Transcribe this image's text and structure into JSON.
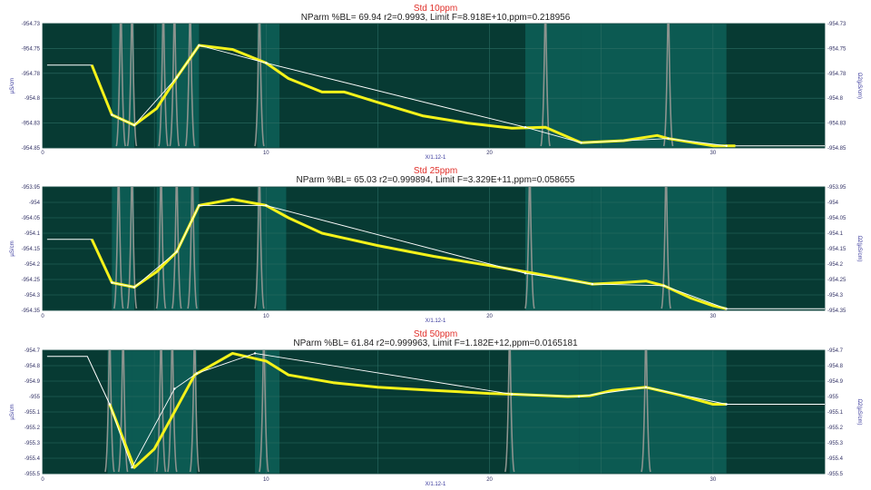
{
  "chart_data": [
    {
      "type": "line",
      "title": "Std 10ppm",
      "subtitle": "NParm %BL= 69.94 r2=0.9993, Limit F=8.918E+10,ppm=0.218956",
      "xlabel": "X/1.12-1",
      "ylabel": "µS/cm",
      "ylabel_right": "Ω2(µS/cm)",
      "xlim": [
        0,
        35
      ],
      "ylim": [
        -954.85,
        -954.73
      ],
      "xticks": [
        "0",
        "10",
        "20",
        "30"
      ],
      "yticks": [
        "-954.73",
        "-954.75",
        "-954.78",
        "-954.8",
        "-954.83",
        "-954.85"
      ],
      "bands": [
        [
          3.1,
          4.1
        ],
        [
          5.1,
          6.0
        ],
        [
          6.0,
          7.0
        ],
        [
          9.6,
          10.6
        ],
        [
          21.6,
          24.1
        ],
        [
          24.1,
          28.0
        ],
        [
          28.0,
          30.6
        ]
      ],
      "peaks": [
        3.5,
        4.0,
        5.4,
        5.9,
        6.6,
        9.7,
        22.5,
        28.0
      ],
      "series": [
        {
          "x": [
            0.2,
            2.2,
            3.1,
            4.1,
            5.1,
            6.0,
            7.0,
            8.5,
            10.0,
            11.0,
            12.5,
            13.5,
            15.0,
            17.0,
            19.0,
            21.0,
            22.5,
            24.1,
            26.0,
            27.5,
            28.0,
            30.0,
            31.0,
            35.0
          ],
          "values": [
            -954.77,
            -954.77,
            -954.818,
            -954.828,
            -954.812,
            -954.782,
            -954.751,
            -954.755,
            -954.768,
            -954.783,
            -954.796,
            -954.796,
            -954.806,
            -954.819,
            -954.826,
            -954.831,
            -954.83,
            -954.845,
            -954.843,
            -954.838,
            -954.841,
            -954.848,
            -954.848,
            -954.848
          ]
        },
        {
          "x": [
            3.1,
            4.1,
            6.0,
            7.0,
            10.0,
            21.6,
            24.1,
            28.0,
            30.6
          ],
          "values": [
            -954.818,
            -954.828,
            -954.782,
            -954.751,
            -954.768,
            -954.83,
            -954.845,
            -954.841,
            -954.848
          ]
        }
      ]
    },
    {
      "type": "line",
      "title": "Std 25ppm",
      "subtitle": "NParm %BL= 65.03 r2=0.999894, Limit F=3.329E+11,ppm=0.058655",
      "xlabel": "X/1.12-1",
      "ylabel": "µS/cm",
      "ylabel_right": "Ω2(µS/cm)",
      "xlim": [
        0,
        35
      ],
      "ylim": [
        -954.35,
        -953.95
      ],
      "xticks": [
        "0",
        "10",
        "20",
        "30"
      ],
      "yticks": [
        "-953.95",
        "-954",
        "-954.05",
        "-954.1",
        "-954.15",
        "-954.2",
        "-954.25",
        "-954.3",
        "-954.35"
      ],
      "bands": [
        [
          3.1,
          4.1
        ],
        [
          5.1,
          6.0
        ],
        [
          6.0,
          7.0
        ],
        [
          9.6,
          10.9
        ],
        [
          21.6,
          24.6
        ],
        [
          24.6,
          27.8
        ],
        [
          27.8,
          30.6
        ]
      ],
      "peaks": [
        3.4,
        4.0,
        5.3,
        6.0,
        6.7,
        9.7,
        21.8,
        27.9
      ],
      "series": [
        {
          "x": [
            0.2,
            2.2,
            3.1,
            4.1,
            5.1,
            6.0,
            7.0,
            8.5,
            10.0,
            11.0,
            12.5,
            15.0,
            17.5,
            20.0,
            22.0,
            24.6,
            26.0,
            27.0,
            27.8,
            29.0,
            30.0,
            30.6,
            35.0
          ],
          "values": [
            -954.12,
            -954.12,
            -954.26,
            -954.275,
            -954.225,
            -954.16,
            -954.01,
            -953.99,
            -954.01,
            -954.05,
            -954.1,
            -954.14,
            -954.175,
            -954.205,
            -954.23,
            -954.265,
            -954.26,
            -954.255,
            -954.27,
            -954.31,
            -954.335,
            -954.345,
            -954.345
          ]
        },
        {
          "x": [
            3.1,
            4.1,
            6.0,
            7.0,
            10.0,
            21.6,
            24.6,
            27.8,
            30.6
          ],
          "values": [
            -954.26,
            -954.275,
            -954.16,
            -954.01,
            -954.01,
            -954.23,
            -954.265,
            -954.27,
            -954.345
          ]
        }
      ]
    },
    {
      "type": "line",
      "title": "Std 50ppm",
      "subtitle": "NParm %BL= 61.84 r2=0.999963, Limit F=1.182E+12,ppm=0.0165181",
      "xlabel": "X/1.12-1",
      "ylabel": "µS/cm",
      "ylabel_right": "Ω2(µS/cm)",
      "xlim": [
        0,
        35
      ],
      "ylim": [
        -955.5,
        -954.7
      ],
      "xticks": [
        "0",
        "10",
        "20",
        "30"
      ],
      "yticks": [
        "-954.7",
        "-954.8",
        "-954.9",
        "-955",
        "-955.1",
        "-955.2",
        "-955.3",
        "-955.4",
        "-955.5"
      ],
      "bands": [
        [
          2.9,
          4.0
        ],
        [
          4.0,
          5.9
        ],
        [
          5.9,
          6.9
        ],
        [
          9.5,
          10.6
        ],
        [
          20.9,
          24.0
        ],
        [
          24.0,
          27.0
        ],
        [
          27.0,
          30.6
        ]
      ],
      "peaks": [
        3.0,
        3.6,
        5.3,
        5.8,
        6.8,
        9.9,
        20.9,
        27.0
      ],
      "series": [
        {
          "x": [
            0.2,
            2.0,
            3.0,
            4.1,
            5.0,
            6.8,
            8.5,
            10.0,
            11.0,
            13.0,
            15.0,
            17.5,
            20.0,
            21.0,
            23.5,
            24.5,
            25.5,
            27.0,
            28.5,
            30.0,
            30.6,
            35.0
          ],
          "values": [
            -954.74,
            -954.74,
            -955.05,
            -955.46,
            -955.34,
            -954.86,
            -954.72,
            -954.77,
            -954.86,
            -954.91,
            -954.94,
            -954.96,
            -954.98,
            -954.985,
            -955.0,
            -954.995,
            -954.96,
            -954.94,
            -954.99,
            -955.05,
            -955.05,
            -955.05
          ]
        },
        {
          "x": [
            3.0,
            4.0,
            5.9,
            6.9,
            9.5,
            21.0,
            24.0,
            27.0,
            30.6
          ],
          "values": [
            -955.05,
            -955.46,
            -954.95,
            -954.85,
            -954.72,
            -954.985,
            -955.0,
            -954.94,
            -955.05
          ]
        }
      ]
    }
  ]
}
